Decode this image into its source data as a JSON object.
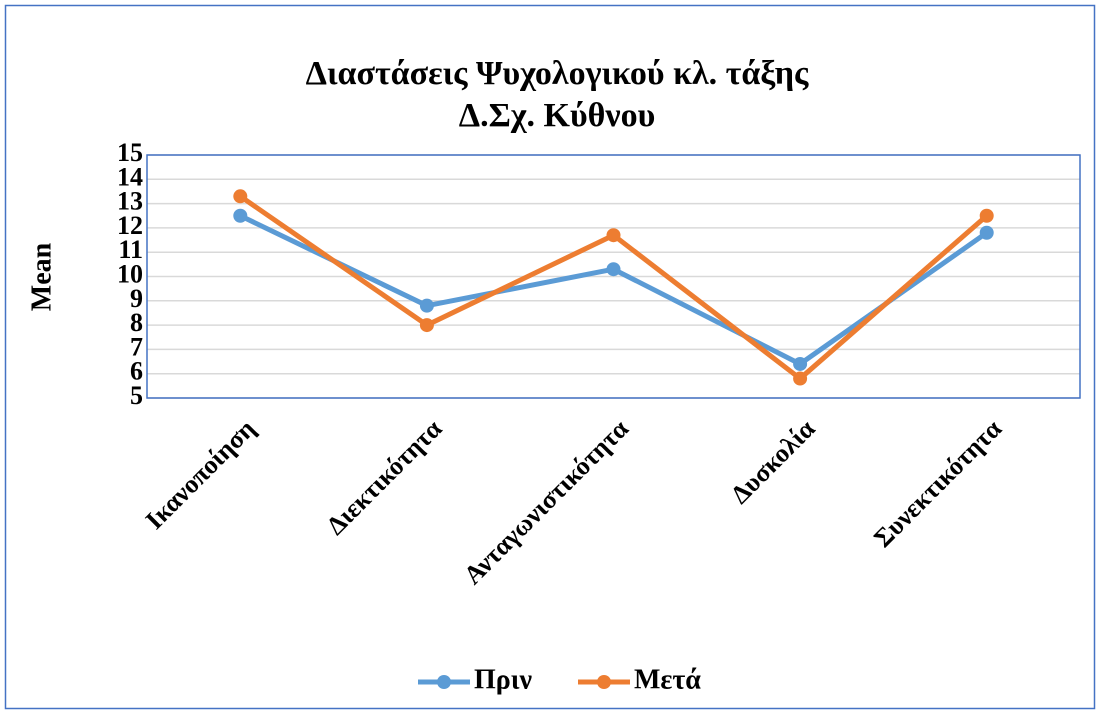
{
  "chart_data": {
    "type": "line",
    "title": "Διαστάσεις Ψυχολογικού κλ. τάξης",
    "subtitle": "Δ.Σχ. Κύθνου",
    "y_label": "Mean",
    "categories": [
      "Ικανοποίηση",
      "Διεκτικότητα",
      "Ανταγωνιστικότητα",
      "Δυσκολία",
      "Συνεκτικότητα"
    ],
    "series": [
      {
        "name": "Πριν",
        "color": "#5b9bd5",
        "values": [
          12.5,
          8.8,
          10.3,
          6.4,
          11.8
        ]
      },
      {
        "name": "Μετά",
        "color": "#ed7d31",
        "values": [
          13.3,
          8.0,
          11.7,
          5.8,
          12.5
        ]
      }
    ],
    "ylim": [
      5,
      15
    ],
    "yticks": [
      5,
      6,
      7,
      8,
      9,
      10,
      11,
      12,
      13,
      14,
      15
    ],
    "grid": true,
    "legend": "bottom"
  }
}
